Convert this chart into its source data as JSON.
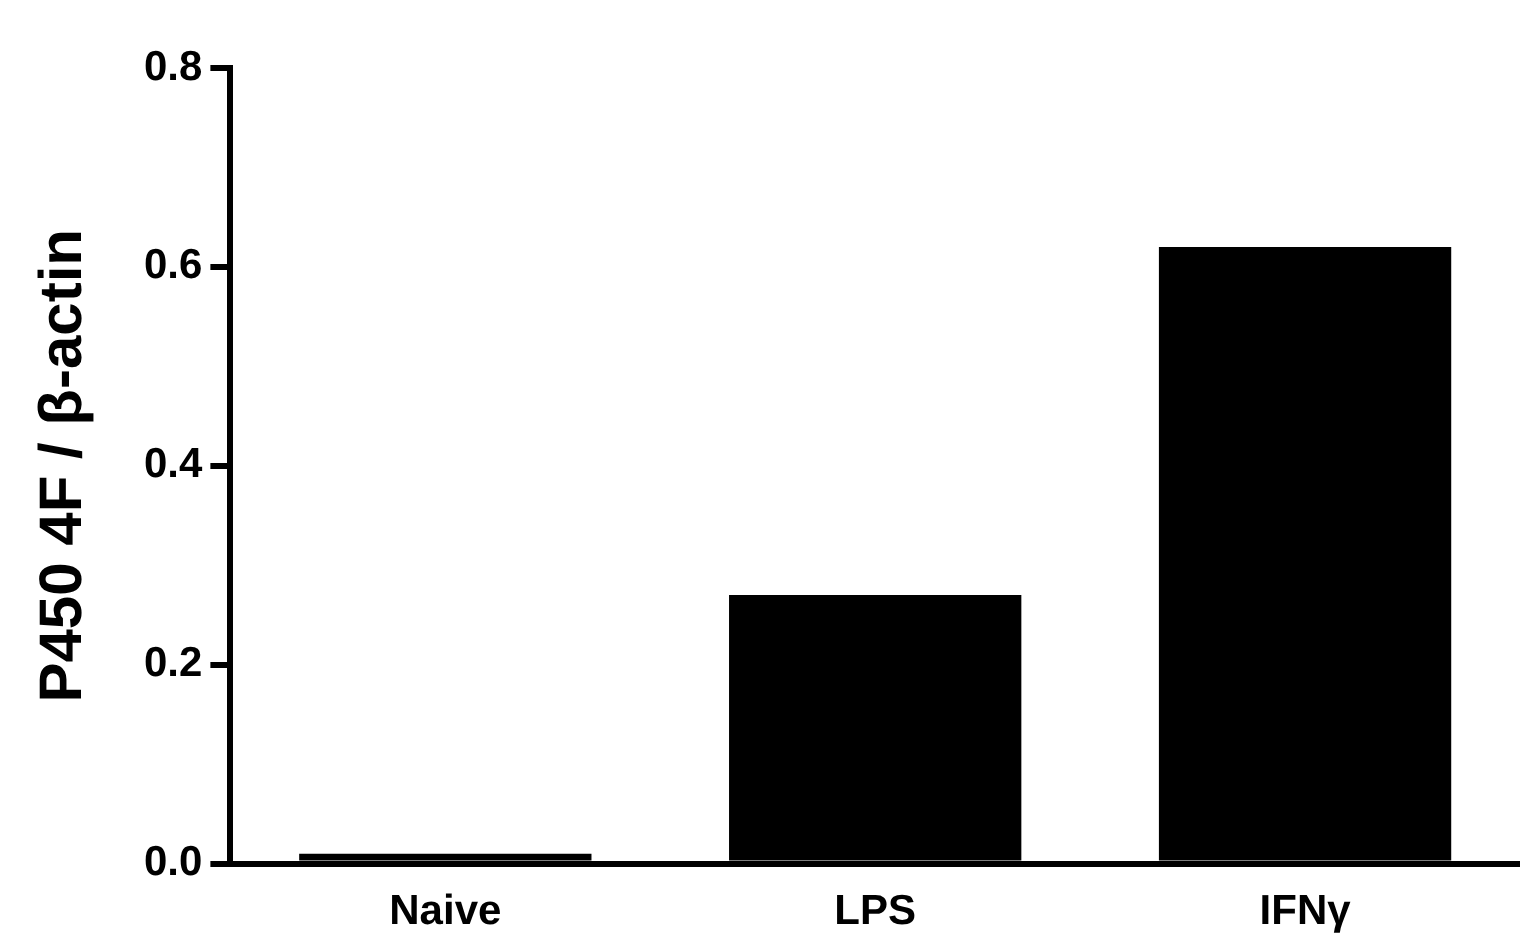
{
  "chart_data": {
    "type": "bar",
    "ylabel": "P450 4F / β-actin",
    "categories": [
      "Naive",
      "LPS",
      "IFNγ"
    ],
    "values": [
      0.01,
      0.27,
      0.62
    ],
    "color": "#000000",
    "ylim": [
      0,
      0.8
    ],
    "yticks": [
      {
        "value": 0,
        "label": "0.0"
      },
      {
        "value": 0.2,
        "label": "0.2"
      },
      {
        "value": 0.4,
        "label": "0.4"
      },
      {
        "value": 0.6,
        "label": "0.6"
      },
      {
        "value": 0.8,
        "label": "0.8"
      }
    ],
    "grid": false,
    "legend": false
  }
}
